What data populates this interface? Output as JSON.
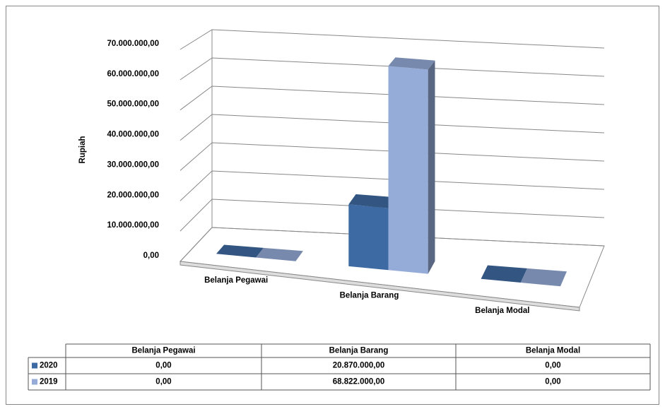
{
  "chart_data": {
    "type": "bar3d",
    "y_label": "Rupiah",
    "categories": [
      "Belanja Pegawai",
      "Belanja Barang",
      "Belanja Modal"
    ],
    "series": [
      {
        "name": "2020",
        "color": "#3e6aa3",
        "values": [
          0,
          20870000,
          0
        ],
        "value_labels": [
          "0,00",
          "20.870.000,00",
          "0,00"
        ]
      },
      {
        "name": "2019",
        "color": "#95acd8",
        "values": [
          0,
          68822000,
          0
        ],
        "value_labels": [
          "0,00",
          "68.822.000,00",
          "0,00"
        ]
      }
    ],
    "ylim": [
      0,
      70000000
    ],
    "yticks": [
      {
        "value": 0,
        "label": "0,00"
      },
      {
        "value": 10000000,
        "label": "10.000.000,00"
      },
      {
        "value": 20000000,
        "label": "20.000.000,00"
      },
      {
        "value": 30000000,
        "label": "30.000.000,00"
      },
      {
        "value": 40000000,
        "label": "40.000.000,00"
      },
      {
        "value": 50000000,
        "label": "50.000.000,00"
      },
      {
        "value": 60000000,
        "label": "60.000.000,00"
      },
      {
        "value": 70000000,
        "label": "70.000.000,00"
      }
    ],
    "grid": true,
    "data_table": true
  }
}
